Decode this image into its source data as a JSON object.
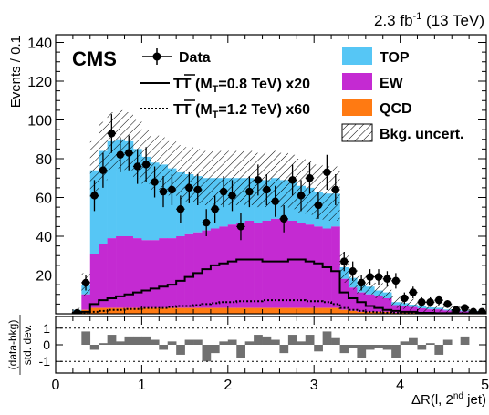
{
  "chart_data": {
    "type": "bar",
    "header": {
      "lumi_energy": "2.3 fb",
      "lumi_exp": "-1",
      "lumi_tail": " (13 TeV)",
      "experiment": "CMS"
    },
    "xlabel_main": "ΔR(l, 2",
    "xlabel_sup": "nd",
    "xlabel_tail": " jet)",
    "ylabel": "Events / 0.1",
    "ratio_ylabel_top": "(data-bkg)",
    "ratio_ylabel_bottom": "std. dev.",
    "xlim": [
      0,
      5
    ],
    "ylim": [
      0,
      144
    ],
    "ratio_ylim": [
      -1.7,
      1.7
    ],
    "x_ticks": [
      "0",
      "1",
      "2",
      "3",
      "4",
      "5"
    ],
    "y_ticks": [
      "20",
      "40",
      "60",
      "80",
      "100",
      "120",
      "140"
    ],
    "ratio_ticks": [
      "1",
      "0",
      "-1"
    ],
    "bin_width": 0.1,
    "bin_edges_low": [
      0.2,
      0.3,
      0.4,
      0.5,
      0.6,
      0.7,
      0.8,
      0.9,
      1.0,
      1.1,
      1.2,
      1.3,
      1.4,
      1.5,
      1.6,
      1.7,
      1.8,
      1.9,
      2.0,
      2.1,
      2.2,
      2.3,
      2.4,
      2.5,
      2.6,
      2.7,
      2.8,
      2.9,
      3.0,
      3.1,
      3.2,
      3.3,
      3.4,
      3.5,
      3.6,
      3.7,
      3.8,
      3.9,
      4.0,
      4.1,
      4.2,
      4.3,
      4.4,
      4.5,
      4.6,
      4.7,
      4.8,
      4.9
    ],
    "legend": {
      "data": "Data",
      "tt08_main": "TT",
      "tt08_tail": " (M",
      "tt08_sub": "T",
      "tt08_end": "=0.8 TeV) x20",
      "tt12_main": "TT",
      "tt12_tail": " (M",
      "tt12_sub": "T",
      "tt12_end": "=1.2 TeV) x60",
      "top": "TOP",
      "ew": "EW",
      "qcd": "QCD",
      "unc": "Bkg. uncert."
    },
    "colors": {
      "top": "#56c6f5",
      "ew": "#c42ad2",
      "qcd": "#ff7a12",
      "data": "#000000",
      "ratio_bar": "#707070"
    },
    "series": [
      {
        "name": "QCD",
        "values": [
          0.5,
          2,
          3,
          3,
          3,
          3,
          3,
          3,
          3,
          3,
          3,
          3,
          3,
          3,
          3,
          3,
          3,
          3,
          3,
          3,
          3,
          3,
          3,
          3,
          3,
          3,
          3,
          3,
          3,
          3,
          3,
          2,
          1.5,
          1,
          1,
          1,
          1,
          0.5,
          0.5,
          0.5,
          0.3,
          0.3,
          0.3,
          0.2,
          0.2,
          0.2,
          0.2,
          0.2
        ]
      },
      {
        "name": "EW",
        "values": [
          0.5,
          8,
          28,
          33,
          36,
          37,
          37,
          36,
          35,
          35,
          36,
          36,
          37,
          38,
          39,
          40,
          41,
          42,
          43,
          44,
          45,
          44,
          45,
          46,
          46,
          45,
          44,
          43,
          42,
          41,
          42,
          16,
          12,
          10,
          9,
          8,
          7,
          4,
          3.5,
          3,
          2.5,
          2,
          2,
          1.5,
          1.2,
          1,
          1,
          0.8
        ]
      },
      {
        "name": "TOP",
        "values": [
          1,
          5,
          43,
          48,
          50,
          50,
          49,
          46,
          43,
          40,
          38,
          36,
          33,
          31,
          29,
          27,
          26,
          25,
          24,
          23,
          22,
          22,
          21,
          21,
          20,
          20,
          19,
          19,
          18,
          18,
          17,
          6,
          5,
          4,
          4,
          3,
          3,
          1.5,
          1.5,
          1.2,
          1,
          1,
          0.8,
          0.5,
          0.5,
          0.5,
          0.3,
          0.3
        ]
      },
      {
        "name": "Bkg. uncert.",
        "values": [
          1,
          6,
          15,
          15,
          15,
          15,
          15,
          15,
          14,
          14,
          14,
          14,
          14,
          14,
          14,
          14,
          14,
          14,
          14,
          14,
          14,
          14,
          14,
          14,
          14,
          14,
          14,
          14,
          14,
          14,
          14,
          8,
          6,
          5,
          4,
          4,
          4,
          3,
          3,
          3,
          3,
          2,
          2,
          2,
          2,
          1.5,
          1.5,
          1.5
        ]
      },
      {
        "name": "Data",
        "values": [
          0.5,
          16,
          61,
          74,
          93,
          82,
          83,
          76,
          77,
          68,
          63,
          64,
          54,
          65,
          64,
          47,
          54,
          63,
          61,
          45,
          63,
          69,
          64,
          58,
          49,
          69,
          61,
          70,
          56,
          73,
          64,
          27,
          22,
          16,
          19,
          19,
          18,
          17,
          8,
          11,
          6,
          6,
          7,
          5,
          2,
          3,
          1,
          1
        ]
      },
      {
        "name": "Data error",
        "values": [
          1,
          4,
          8,
          9,
          10,
          9,
          9,
          9,
          9,
          8,
          8,
          8,
          7,
          8,
          8,
          7,
          7,
          8,
          8,
          7,
          8,
          8,
          8,
          8,
          7,
          8,
          8,
          8,
          7,
          9,
          8,
          5,
          5,
          4,
          4,
          4,
          4,
          4,
          3,
          3,
          2.5,
          2.5,
          2.5,
          2,
          1.5,
          1.7,
          1,
          1
        ]
      },
      {
        "name": "TT (MT=0.8 TeV) x20",
        "values": [
          0.5,
          1,
          5,
          7,
          8,
          9,
          10,
          11,
          12,
          13,
          14,
          15,
          17,
          19,
          21,
          23,
          25,
          26,
          27,
          28,
          28,
          28,
          27,
          27,
          27,
          28,
          28,
          27,
          26,
          24,
          22,
          11,
          8,
          6,
          4,
          3,
          2,
          1.5,
          1,
          1,
          0.5,
          0.5,
          0.3,
          0.3,
          0.2,
          0.2,
          0.2,
          0.2
        ]
      },
      {
        "name": "TT (MT=1.2 TeV) x60",
        "values": [
          0.1,
          0.2,
          1,
          1.5,
          2,
          2,
          2.5,
          2.5,
          3,
          3,
          3,
          3.5,
          4,
          4,
          4.5,
          5,
          5.5,
          6,
          6,
          6.5,
          6.5,
          6.5,
          7,
          7,
          7,
          7,
          7,
          6.5,
          6.5,
          6,
          5,
          3,
          2,
          1.5,
          1,
          0.8,
          0.6,
          0.4,
          0.3,
          0.3,
          0.2,
          0.2,
          0.1,
          0.1,
          0.1,
          0.1,
          0.1,
          0.1
        ]
      },
      {
        "name": "Ratio",
        "values": [
          0,
          0.8,
          -0.3,
          0.1,
          0.6,
          0.2,
          0.5,
          0.5,
          0.5,
          0.3,
          -0.3,
          0.2,
          -0.6,
          0.3,
          0.3,
          -1.0,
          -0.5,
          0.2,
          0.3,
          -0.8,
          0.2,
          0.6,
          0.5,
          0.3,
          -0.5,
          0.6,
          0.2,
          0.6,
          -0.4,
          0.8,
          0.4,
          -0.5,
          -0.2,
          -0.8,
          -0.3,
          -0.2,
          -0.3,
          -0.8,
          0.2,
          0.4,
          -0.3,
          0.1,
          -0.6,
          0.3,
          0,
          0.5,
          0,
          0
        ]
      }
    ]
  }
}
